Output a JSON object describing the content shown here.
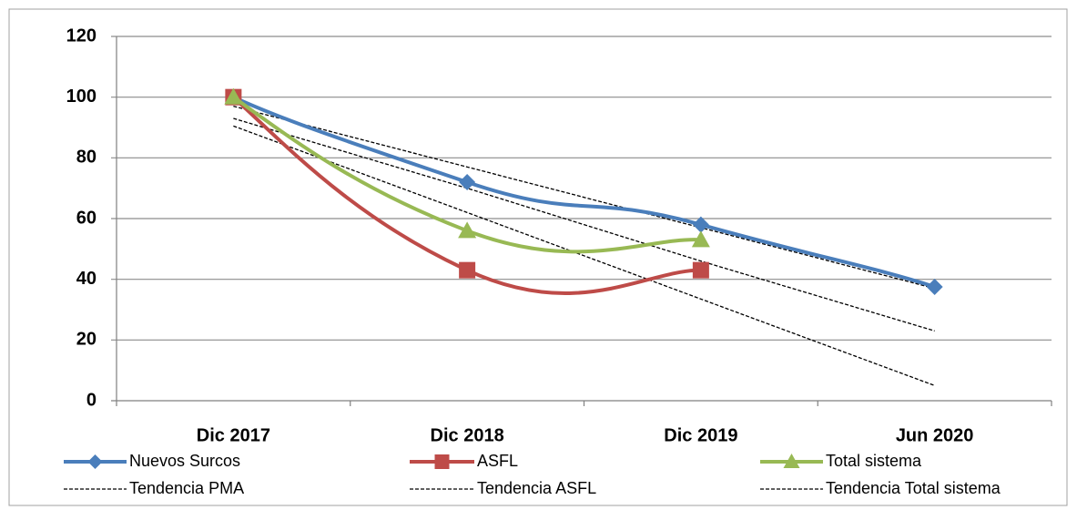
{
  "chart_data": {
    "type": "line",
    "categories": [
      "Dic 2017",
      "Dic 2018",
      "Dic 2019",
      "Jun 2020"
    ],
    "ylim": [
      0,
      120
    ],
    "yticks": [
      0,
      20,
      40,
      60,
      80,
      100,
      120
    ],
    "grid": true,
    "legend": "bottom",
    "series": [
      {
        "name": "Nuevos Surcos",
        "color": "#4a7ebb",
        "marker": "diamond",
        "values": [
          100,
          72,
          58,
          37.5
        ]
      },
      {
        "name": "ASFL",
        "color": "#be4b48",
        "marker": "square",
        "values": [
          100,
          43,
          43,
          null
        ]
      },
      {
        "name": "Total sistema",
        "color": "#98b954",
        "marker": "triangle",
        "values": [
          100,
          56,
          53,
          null
        ]
      },
      {
        "name": "Tendencia PMA",
        "color": "#000000",
        "dashed": true,
        "values": [
          97,
          77,
          57,
          37
        ]
      },
      {
        "name": "Tendencia ASFL",
        "color": "#000000",
        "dashed": true,
        "values": [
          90.5,
          62,
          33.5,
          5
        ]
      },
      {
        "name": "Tendencia Total sistema",
        "color": "#000000",
        "dashed": true,
        "values": [
          93,
          70,
          46,
          23
        ]
      }
    ]
  }
}
